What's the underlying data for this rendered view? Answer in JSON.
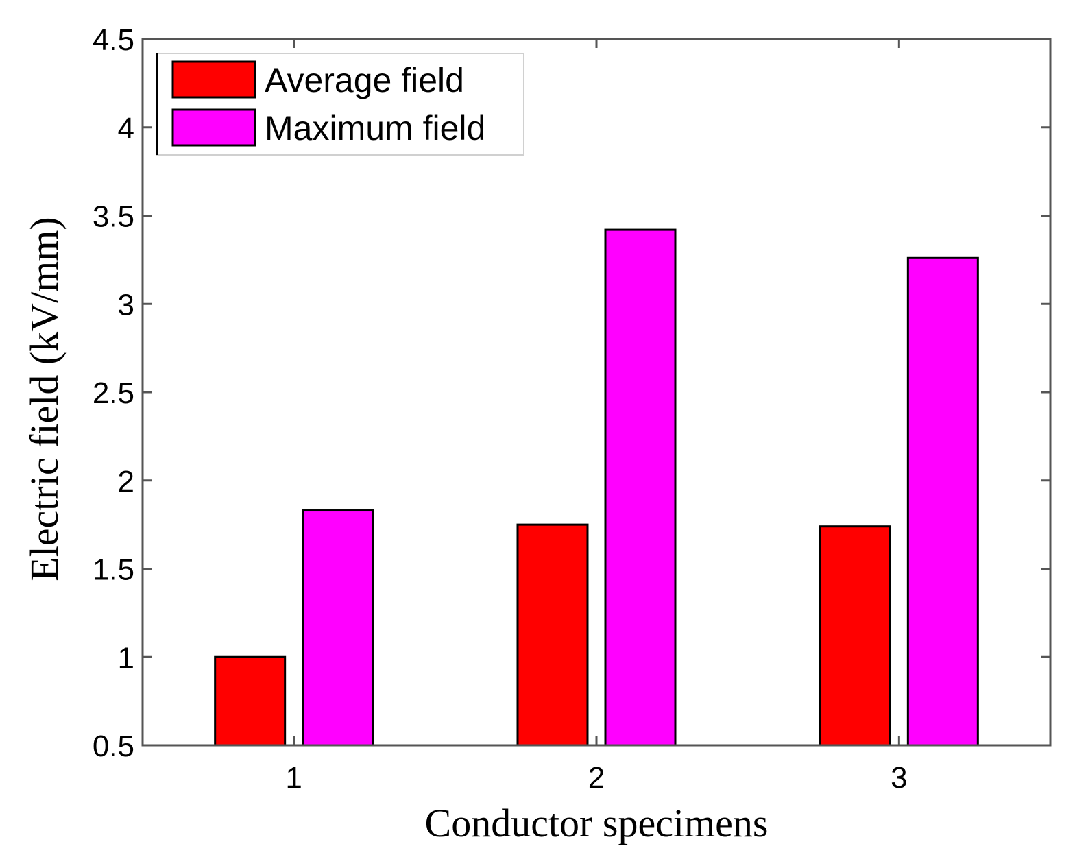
{
  "chart_data": {
    "type": "bar",
    "title": "",
    "xlabel": "Conductor specimens",
    "ylabel": "Electric field (kV/mm)",
    "categories": [
      "1",
      "2",
      "3"
    ],
    "series": [
      {
        "name": "Average field",
        "color": "#ff0000",
        "values": [
          1.0,
          1.75,
          1.74
        ]
      },
      {
        "name": "Maximum field",
        "color": "#ff00ff",
        "values": [
          1.83,
          3.42,
          3.26
        ]
      }
    ],
    "ylim": [
      0.5,
      4.5
    ],
    "yticks": [
      "0.5",
      "1",
      "1.5",
      "2",
      "2.5",
      "3",
      "3.5",
      "4",
      "4.5"
    ],
    "grid": false,
    "legend_position": "top-left"
  }
}
